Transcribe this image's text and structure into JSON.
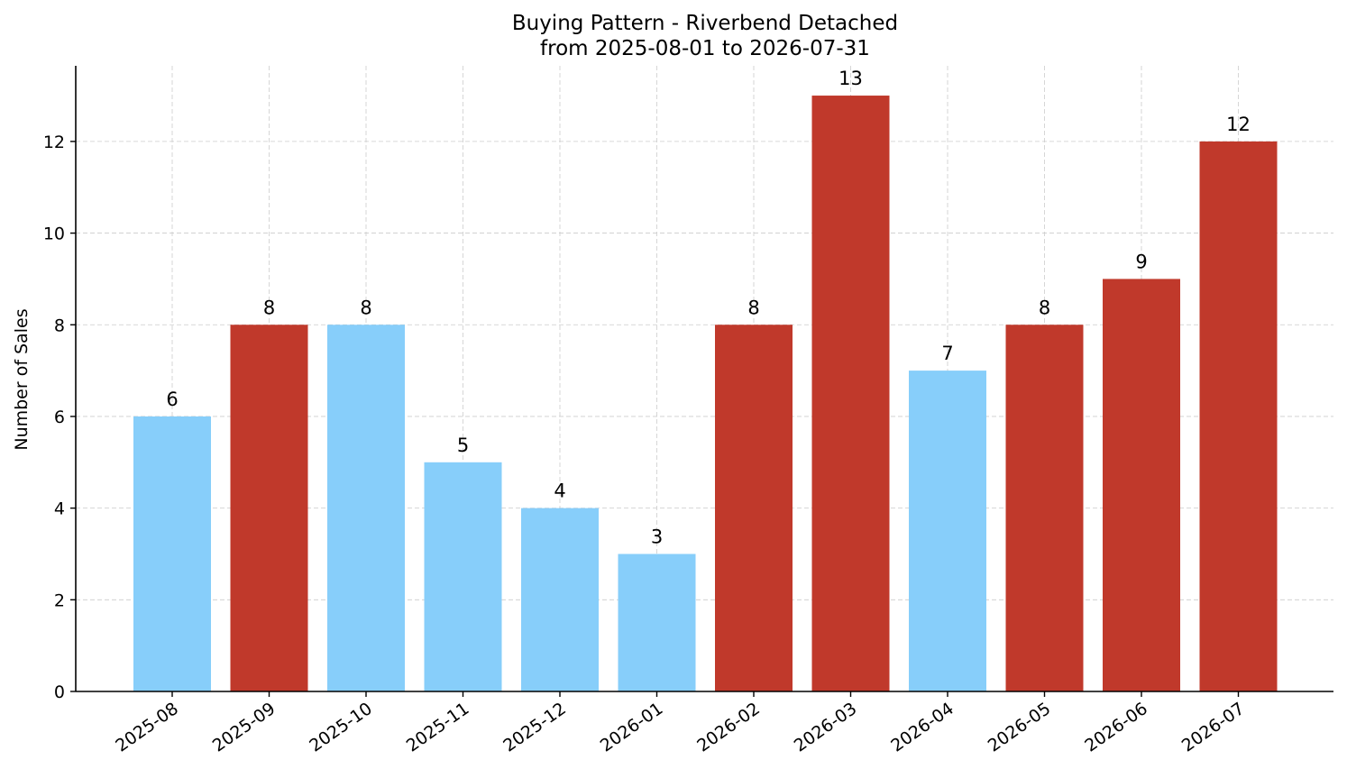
{
  "chart_data": {
    "type": "bar",
    "title_line1": "Buying Pattern - Riverbend Detached",
    "title_line2": "from 2025-08-01 to 2026-07-31",
    "xlabel": "",
    "ylabel": "Number of Sales",
    "categories": [
      "2025-08",
      "2025-09",
      "2025-10",
      "2025-11",
      "2025-12",
      "2026-01",
      "2026-02",
      "2026-03",
      "2026-04",
      "2026-05",
      "2026-06",
      "2026-07"
    ],
    "values": [
      6,
      8,
      8,
      5,
      4,
      3,
      8,
      13,
      7,
      8,
      9,
      12
    ],
    "bar_colors": [
      "#87CEFA",
      "#C0392B",
      "#87CEFA",
      "#87CEFA",
      "#87CEFA",
      "#87CEFA",
      "#C0392B",
      "#C0392B",
      "#87CEFA",
      "#C0392B",
      "#C0392B",
      "#C0392B"
    ],
    "yticks": [
      0,
      2,
      4,
      6,
      8,
      10,
      12
    ],
    "ylim": [
      0,
      13.65
    ],
    "grid": true,
    "data_labels": true
  }
}
